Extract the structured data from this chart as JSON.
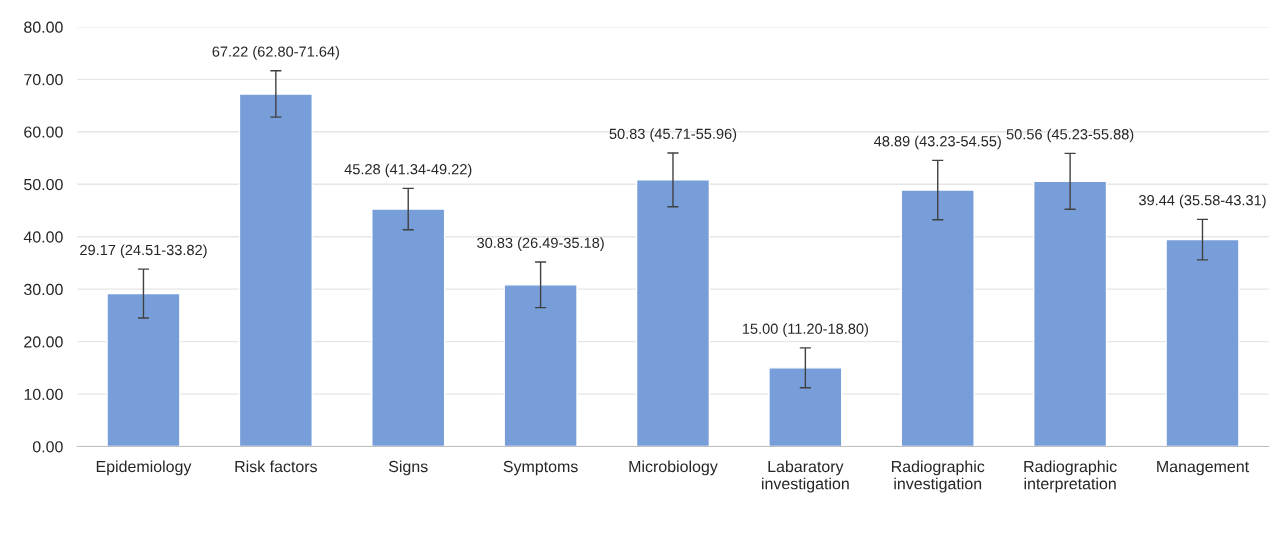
{
  "chart_data": {
    "type": "bar",
    "categories": [
      "Epidemiology",
      "Risk factors",
      "Signs",
      "Symptoms",
      "Microbiology",
      "Labaratory\ninvestigation",
      "Radiographic\ninvestigation",
      "Radiographic\ninterpretation",
      "Management"
    ],
    "values": [
      29.17,
      67.22,
      45.28,
      30.83,
      50.83,
      15.0,
      48.89,
      50.56,
      39.44
    ],
    "errors": [
      [
        24.51,
        33.82
      ],
      [
        62.8,
        71.64
      ],
      [
        41.34,
        49.22
      ],
      [
        26.49,
        35.18
      ],
      [
        45.71,
        55.96
      ],
      [
        11.2,
        18.8
      ],
      [
        43.23,
        54.55
      ],
      [
        45.23,
        55.88
      ],
      [
        35.58,
        43.31
      ]
    ],
    "value_labels": [
      "29.17 (24.51-33.82)",
      "67.22 (62.80-71.64)",
      "45.28 (41.34-49.22)",
      "30.83 (26.49-35.18)",
      "50.83 (45.71-55.96)",
      "15.00 (11.20-18.80)",
      "48.89 (43.23-54.55)",
      "50.56 (45.23-55.88)",
      "39.44 (35.58-43.31)"
    ],
    "color": "#779ed8",
    "ylim": [
      0,
      80
    ],
    "yticks": [
      {
        "value": 0,
        "label": "0.00"
      },
      {
        "value": 10,
        "label": "10.00"
      },
      {
        "value": 20,
        "label": "20.00"
      },
      {
        "value": 30,
        "label": "30.00"
      },
      {
        "value": 40,
        "label": "40.00"
      },
      {
        "value": 50,
        "label": "50.00"
      },
      {
        "value": 60,
        "label": "60.00"
      },
      {
        "value": 70,
        "label": "70.00"
      },
      {
        "value": 80,
        "label": "80.00"
      }
    ],
    "grid": "y"
  }
}
